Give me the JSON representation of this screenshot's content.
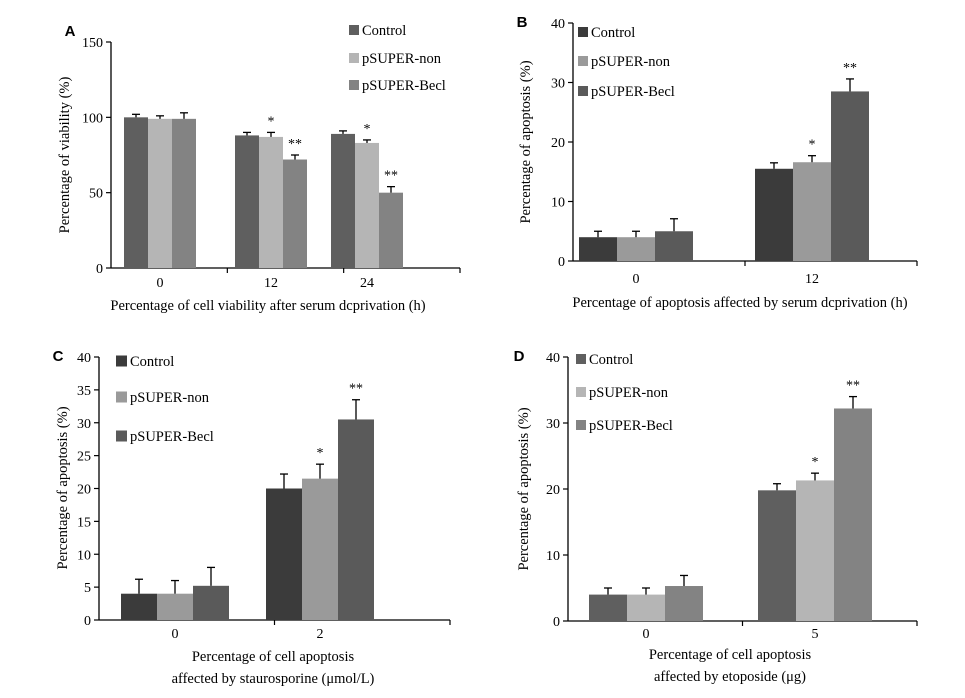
{
  "chart_data": [
    {
      "panel": "A",
      "type": "bar",
      "categories": [
        "0",
        "12",
        "24"
      ],
      "ylim": [
        0,
        150
      ],
      "yticks": [
        "0",
        "50",
        "100",
        "150"
      ],
      "ylabel": "Percentage of viability (%)",
      "xlabel": "Percentage of cell viability after serum dcprivation (h)",
      "xlabel2": "",
      "legend_position": "top-right",
      "series": [
        {
          "name": "Control",
          "color": "#5f5f5f",
          "values": [
            100,
            88,
            89
          ],
          "errors": [
            2,
            2,
            2
          ],
          "stars": [
            "",
            "",
            ""
          ]
        },
        {
          "name": "pSUPER-non",
          "color": "#b5b5b5",
          "values": [
            99,
            87,
            83
          ],
          "errors": [
            2,
            3,
            2
          ],
          "stars": [
            "",
            "*",
            "*"
          ]
        },
        {
          "name": "pSUPER-Becl",
          "color": "#838383",
          "values": [
            99,
            72,
            50
          ],
          "errors": [
            4,
            3,
            4
          ],
          "stars": [
            "",
            "**",
            "**"
          ]
        }
      ]
    },
    {
      "panel": "B",
      "type": "bar",
      "categories": [
        "0",
        "12"
      ],
      "ylim": [
        0,
        40
      ],
      "yticks": [
        "0",
        "10",
        "20",
        "30",
        "40"
      ],
      "ylabel": "Percentage of apoptosis (%)",
      "xlabel": "Percentage of apoptosis affected by serum dcprivation (h)",
      "xlabel2": "",
      "legend_position": "top-left",
      "series": [
        {
          "name": "Control",
          "color": "#3b3b3b",
          "values": [
            4,
            15.5
          ],
          "errors": [
            1,
            1
          ],
          "stars": [
            "",
            ""
          ]
        },
        {
          "name": "pSUPER-non",
          "color": "#9a9a9a",
          "values": [
            4,
            16.6
          ],
          "errors": [
            1,
            1.1
          ],
          "stars": [
            "",
            "*"
          ]
        },
        {
          "name": "pSUPER-Becl",
          "color": "#5a5a5a",
          "values": [
            5,
            28.5
          ],
          "errors": [
            2.1,
            2.1
          ],
          "stars": [
            "",
            "**"
          ]
        }
      ]
    },
    {
      "panel": "C",
      "type": "bar",
      "categories": [
        "0",
        "2"
      ],
      "ylim": [
        0,
        40
      ],
      "yticks": [
        "0",
        "5",
        "10",
        "15",
        "20",
        "25",
        "30",
        "35",
        "40"
      ],
      "ylabel": "Percentage of apoptosis (%)",
      "xlabel": "Percentage of cell apoptosis",
      "xlabel2": "affected by staurosporine (μmol/L)",
      "legend_position": "top-left",
      "series": [
        {
          "name": "Control",
          "color": "#3b3b3b",
          "values": [
            4,
            20
          ],
          "errors": [
            2.2,
            2.2
          ],
          "stars": [
            "",
            ""
          ]
        },
        {
          "name": "pSUPER-non",
          "color": "#9a9a9a",
          "values": [
            4,
            21.5
          ],
          "errors": [
            2,
            2.2
          ],
          "stars": [
            "",
            "*"
          ]
        },
        {
          "name": "pSUPER-Becl",
          "color": "#5a5a5a",
          "values": [
            5.2,
            30.5
          ],
          "errors": [
            2.8,
            3
          ],
          "stars": [
            "",
            "**"
          ]
        }
      ]
    },
    {
      "panel": "D",
      "type": "bar",
      "categories": [
        "0",
        "5"
      ],
      "ylim": [
        0,
        40
      ],
      "yticks": [
        "0",
        "10",
        "20",
        "30",
        "40"
      ],
      "ylabel": "Percentage of apoptosis (%)",
      "xlabel": "Percentage of cell apoptosis",
      "xlabel2": "affected by etoposide (μg)",
      "legend_position": "top-left",
      "series": [
        {
          "name": "Control",
          "color": "#5f5f5f",
          "values": [
            4,
            19.8
          ],
          "errors": [
            1,
            1
          ],
          "stars": [
            "",
            ""
          ]
        },
        {
          "name": "pSUPER-non",
          "color": "#b5b5b5",
          "values": [
            4,
            21.3
          ],
          "errors": [
            1,
            1.1
          ],
          "stars": [
            "",
            "*"
          ]
        },
        {
          "name": "pSUPER-Becl",
          "color": "#838383",
          "values": [
            5.3,
            32.2
          ],
          "errors": [
            1.6,
            1.8
          ],
          "stars": [
            "",
            "**"
          ]
        }
      ]
    }
  ]
}
